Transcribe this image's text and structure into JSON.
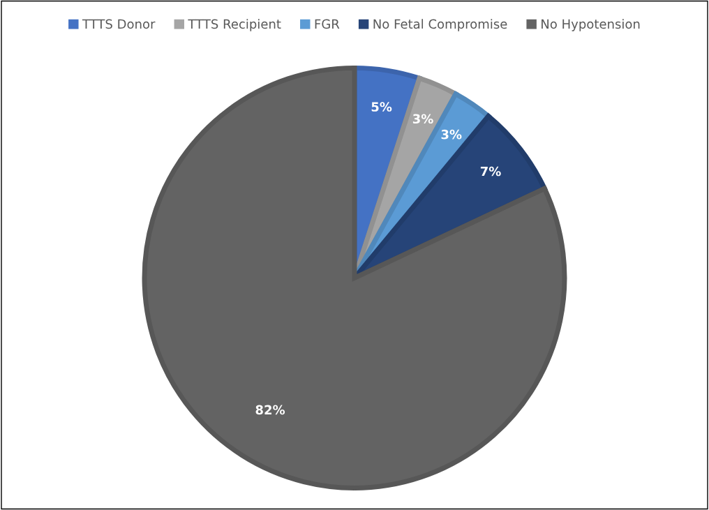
{
  "chart_data": {
    "type": "pie",
    "categories": [
      "TTTS Donor",
      "TTTS Recipient",
      "FGR",
      "No Fetal Compromise",
      "No Hypotension"
    ],
    "values": [
      5,
      3,
      3,
      7,
      82
    ],
    "value_labels": [
      "5%",
      "3%",
      "3%",
      "7%",
      "82%"
    ],
    "colors": [
      "#4472c4",
      "#a5a5a5",
      "#5b9bd5",
      "#264478",
      "#636363"
    ],
    "legend": "top"
  }
}
